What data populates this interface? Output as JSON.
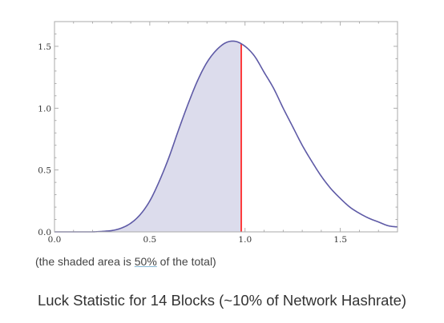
{
  "chart_data": {
    "type": "area",
    "x": [
      0.0,
      0.1,
      0.2,
      0.3,
      0.35,
      0.4,
      0.45,
      0.5,
      0.55,
      0.6,
      0.65,
      0.7,
      0.75,
      0.8,
      0.85,
      0.9,
      0.95,
      1.0,
      1.05,
      1.1,
      1.15,
      1.2,
      1.25,
      1.3,
      1.35,
      1.4,
      1.45,
      1.5,
      1.55,
      1.6,
      1.65,
      1.7,
      1.75,
      1.8
    ],
    "y": [
      0.0,
      0.0,
      0.0,
      0.01,
      0.03,
      0.07,
      0.14,
      0.25,
      0.41,
      0.6,
      0.82,
      1.03,
      1.22,
      1.37,
      1.47,
      1.53,
      1.54,
      1.5,
      1.42,
      1.29,
      1.16,
      1.0,
      0.85,
      0.7,
      0.57,
      0.45,
      0.35,
      0.27,
      0.2,
      0.15,
      0.11,
      0.08,
      0.05,
      0.04
    ],
    "shaded_until_x": 0.98,
    "marker_x": 0.98,
    "xlim": [
      0.0,
      1.8
    ],
    "ylim": [
      0.0,
      1.7
    ],
    "xticks": [
      "0.0",
      "0.5",
      "1.0",
      "1.5"
    ],
    "yticks": [
      "0.0",
      "0.5",
      "1.0",
      "1.5"
    ],
    "xtick_values": [
      0.0,
      0.5,
      1.0,
      1.5
    ],
    "ytick_values": [
      0.0,
      0.5,
      1.0,
      1.5
    ],
    "grid": false,
    "colors": {
      "curve": "#5e5aa6",
      "shade": "#dcdcec",
      "marker": "#ff3b3b",
      "frame": "#aaaaaa"
    }
  },
  "note": {
    "prefix": "(the shaded area is ",
    "percent": "50%",
    "suffix": " of the total)"
  },
  "caption": "Luck Statistic for 14 Blocks (~10% of Network Hashrate)"
}
